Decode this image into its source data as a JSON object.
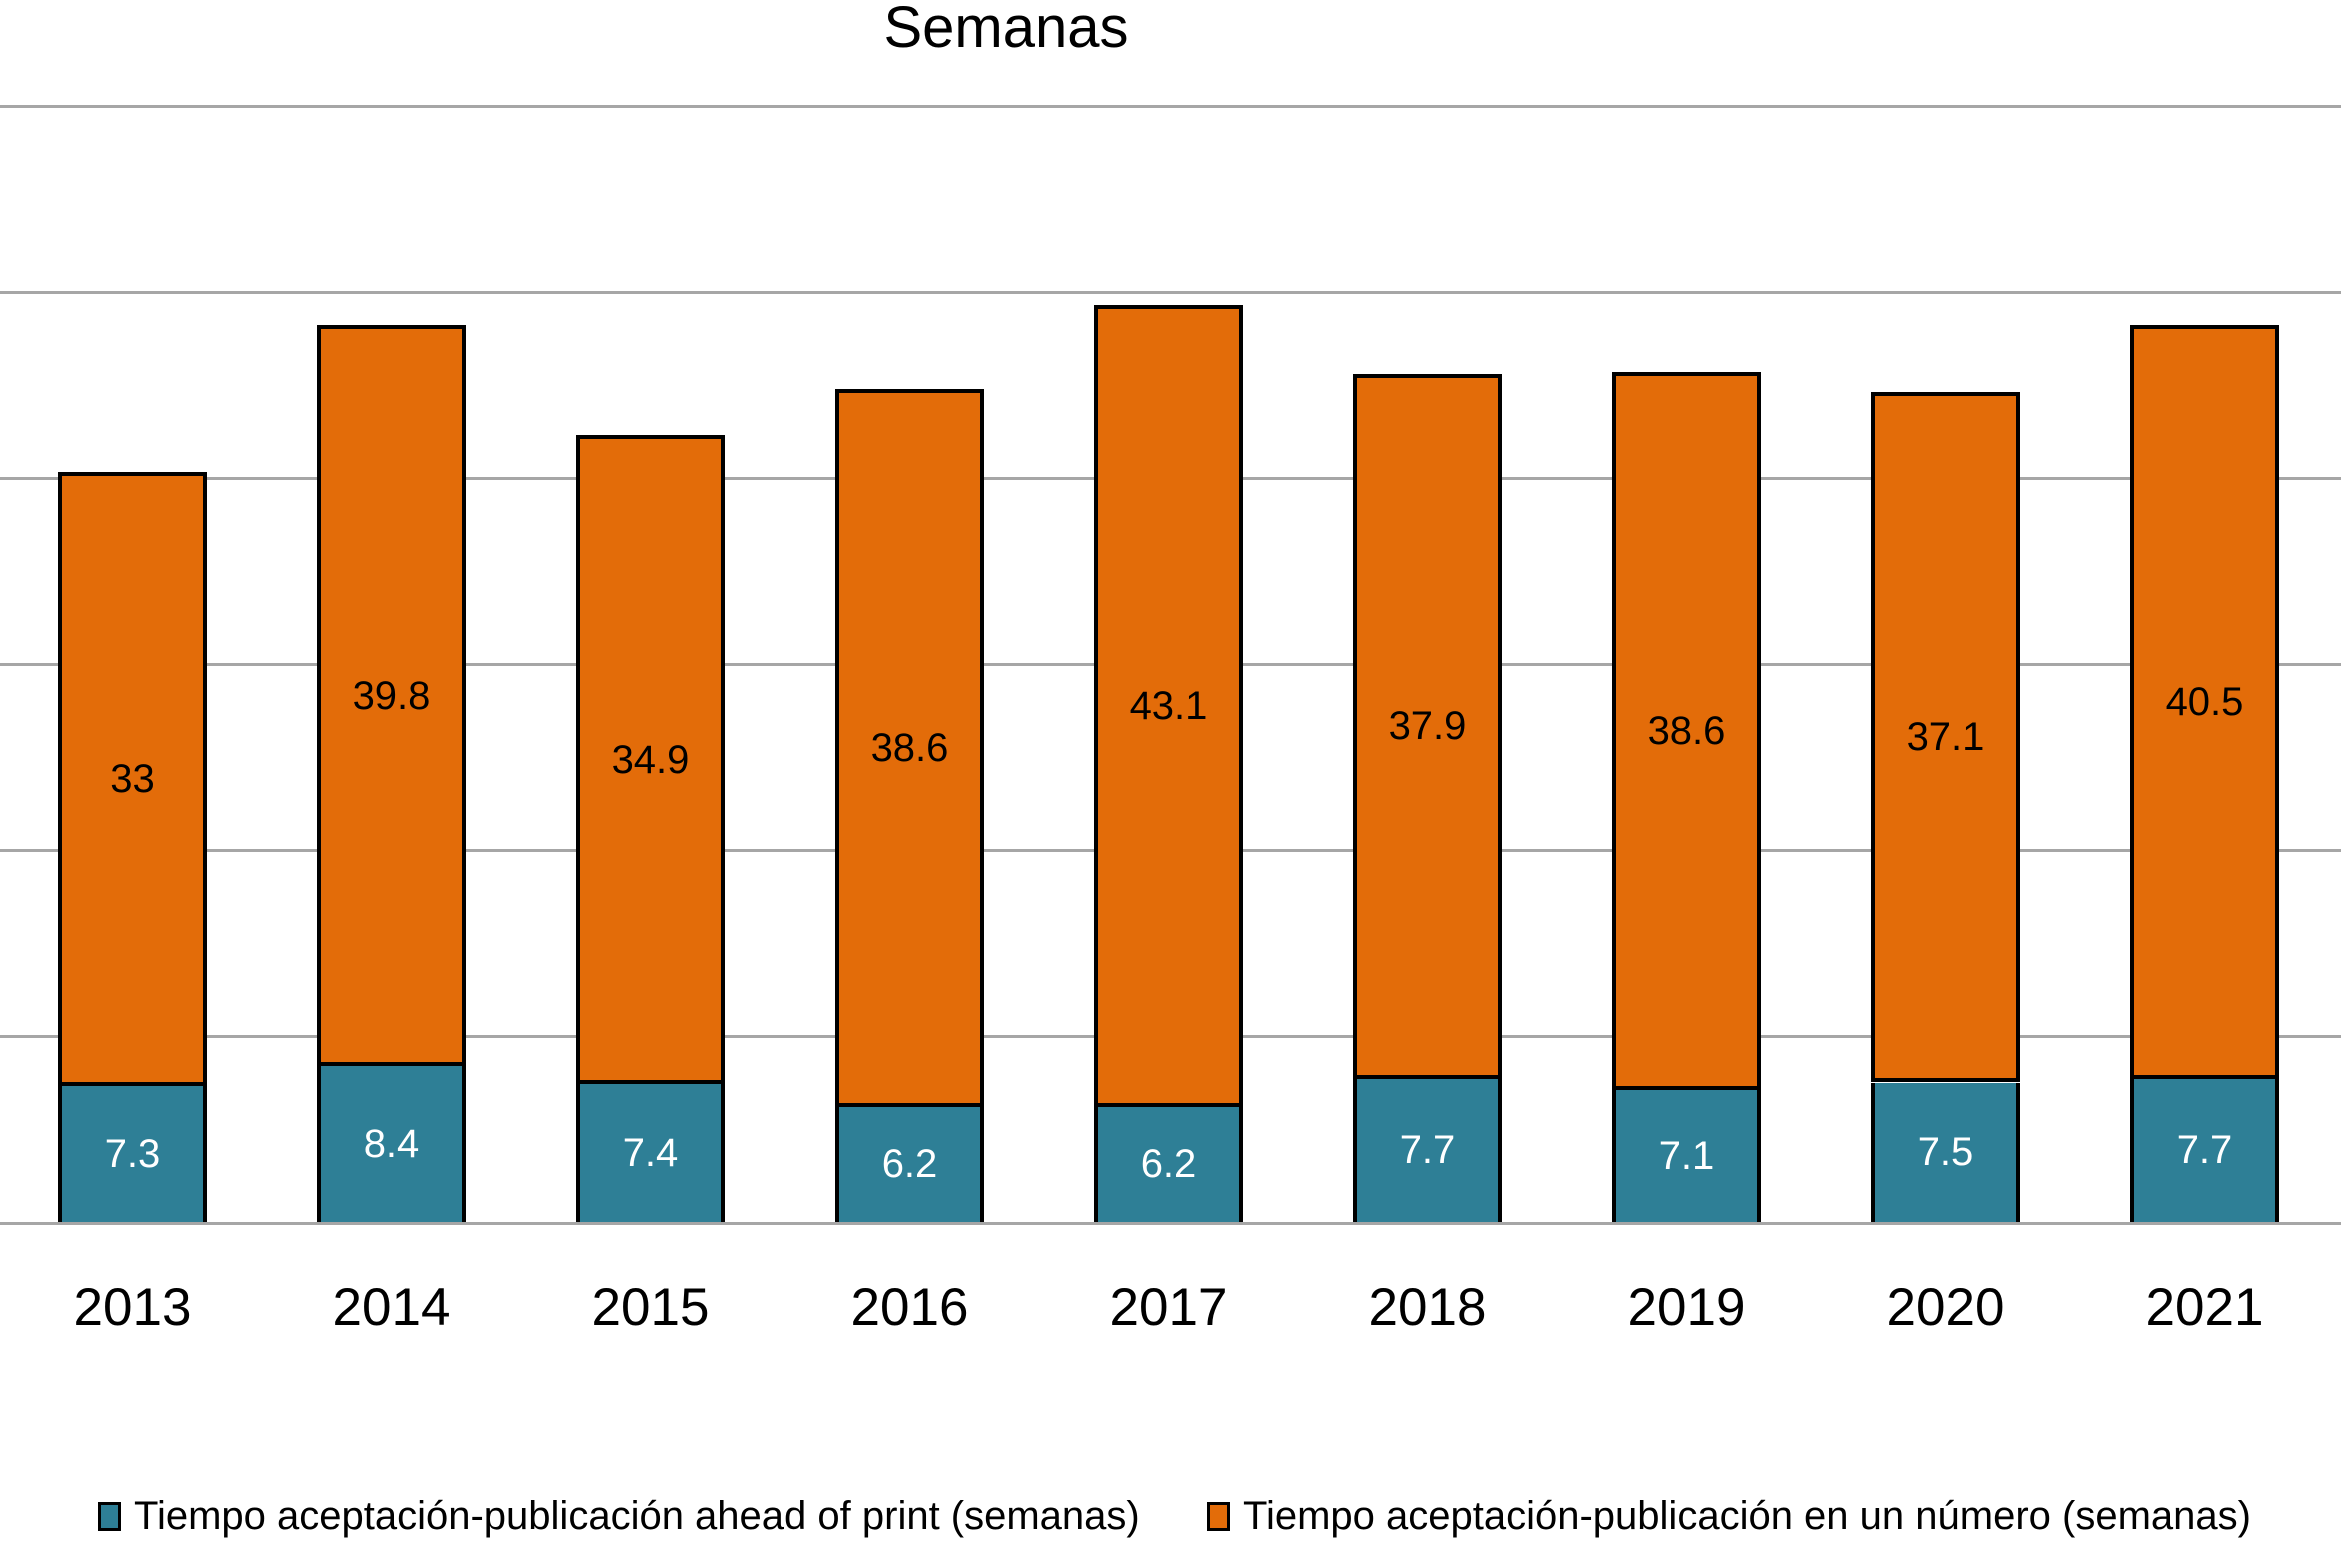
{
  "title": "Semanas",
  "chart_data": {
    "type": "bar",
    "stacked": true,
    "title": "Semanas",
    "xlabel": "",
    "ylabel": "",
    "categories": [
      "2013",
      "2014",
      "2015",
      "2016",
      "2017",
      "2018",
      "2019",
      "2020",
      "2021"
    ],
    "series": [
      {
        "name": "Tiempo aceptación-publicación ahead of print (semanas)",
        "color": "#2E7F96",
        "label_color": "#FFFFFF",
        "values": [
          7.3,
          8.4,
          7.4,
          6.2,
          6.2,
          7.7,
          7.1,
          7.5,
          7.7
        ]
      },
      {
        "name": "Tiempo aceptación-publicación en un número (semanas)",
        "color": "#E36C09",
        "label_color": "#000000",
        "values": [
          33,
          39.8,
          34.9,
          38.6,
          43.1,
          37.9,
          38.6,
          37.1,
          40.5
        ]
      }
    ],
    "stack_totals": [
      40.3,
      48.2,
      42.3,
      44.8,
      49.3,
      45.6,
      45.7,
      44.6,
      48.2
    ],
    "ylim": [
      0,
      60
    ],
    "grid": true,
    "grid_step": 10,
    "grid_color": "#A6A6A6",
    "bar_border_color": "#000000",
    "y_tick_labels_visible": false,
    "legend_position": "bottom",
    "data_labels_visible": true
  }
}
